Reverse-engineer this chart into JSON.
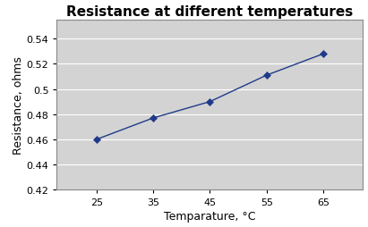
{
  "title": "Resistance at different temperatures",
  "xlabel": "Temparature, °C",
  "ylabel": "Resistance, ohms",
  "x": [
    25,
    35,
    45,
    55,
    65
  ],
  "y": [
    0.46,
    0.477,
    0.49,
    0.511,
    0.528
  ],
  "xlim": [
    18,
    72
  ],
  "ylim": [
    0.42,
    0.555
  ],
  "yticks": [
    0.42,
    0.44,
    0.46,
    0.48,
    0.5,
    0.52,
    0.54
  ],
  "ytick_labels": [
    "0.42",
    "0.44",
    "0.46",
    "0.48",
    "0.5",
    "0.52",
    "0.54"
  ],
  "xticks": [
    25,
    35,
    45,
    55,
    65
  ],
  "line_color": "#1F3A8A",
  "marker_color": "#1F3A8A",
  "fig_bg_color": "#FFFFFF",
  "plot_bg_color": "#D3D3D3",
  "title_fontsize": 11,
  "label_fontsize": 9,
  "tick_fontsize": 8
}
